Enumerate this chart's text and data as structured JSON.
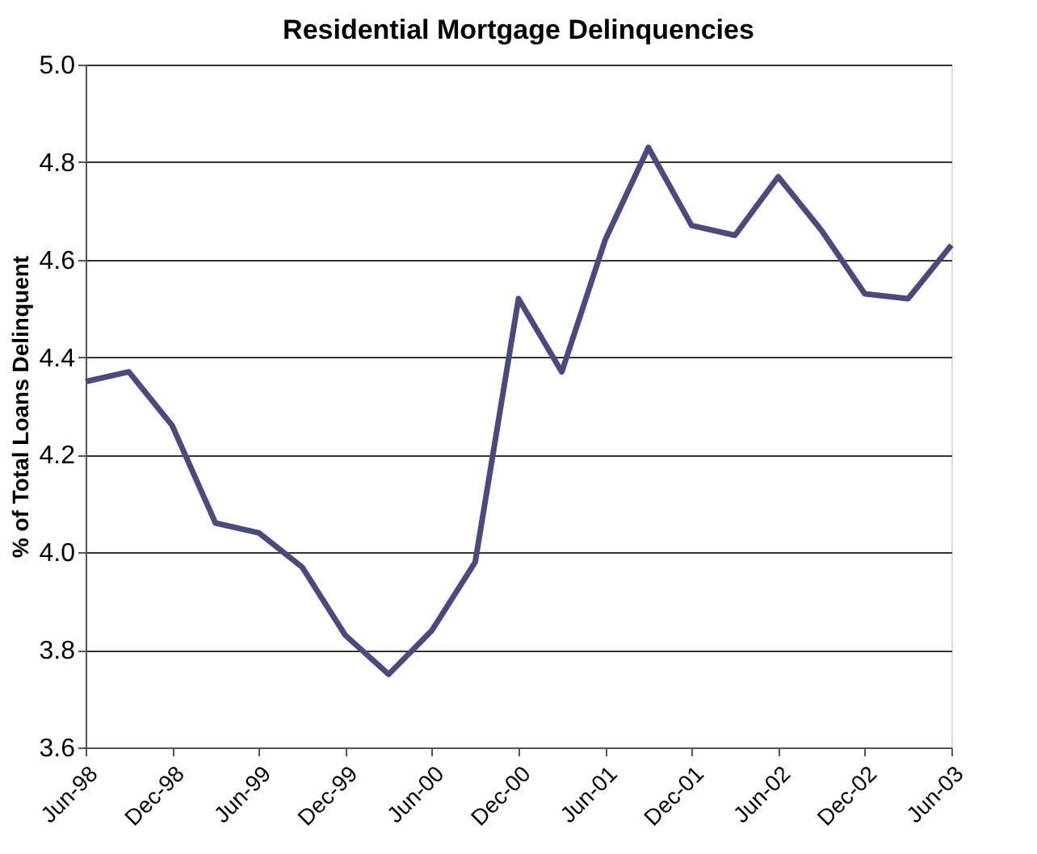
{
  "chart_data": {
    "type": "line",
    "title": "Residential Mortgage Delinquencies",
    "ylabel": "% of Total Loans Delinquent",
    "categories": [
      "Jun-98",
      null,
      "Dec-98",
      null,
      "Jun-99",
      null,
      "Dec-99",
      null,
      "Jun-00",
      null,
      "Dec-00",
      null,
      "Jun-01",
      null,
      "Dec-01",
      null,
      "Jun-02",
      null,
      "Dec-02",
      null,
      "Jun-03"
    ],
    "series": [
      {
        "color": "#4b4a7c",
        "values": [
          4.35,
          4.37,
          4.26,
          4.06,
          4.04,
          3.97,
          3.83,
          3.75,
          3.84,
          3.98,
          4.52,
          4.37,
          4.64,
          4.83,
          4.67,
          4.65,
          4.77,
          4.66,
          4.53,
          4.52,
          4.63
        ]
      }
    ],
    "ylim": [
      3.6,
      5.0
    ],
    "yticks": [
      {
        "value": 3.6,
        "label": "3.6"
      },
      {
        "value": 3.8,
        "label": "3.8"
      },
      {
        "value": 4.0,
        "label": "4.0"
      },
      {
        "value": 4.2,
        "label": "4.2"
      },
      {
        "value": 4.4,
        "label": "4.4"
      },
      {
        "value": 4.6,
        "label": "4.6"
      },
      {
        "value": 4.8,
        "label": "4.8"
      },
      {
        "value": 5.0,
        "label": "5.0"
      }
    ],
    "grid": "y",
    "marker": "none",
    "line_style": "solid"
  }
}
